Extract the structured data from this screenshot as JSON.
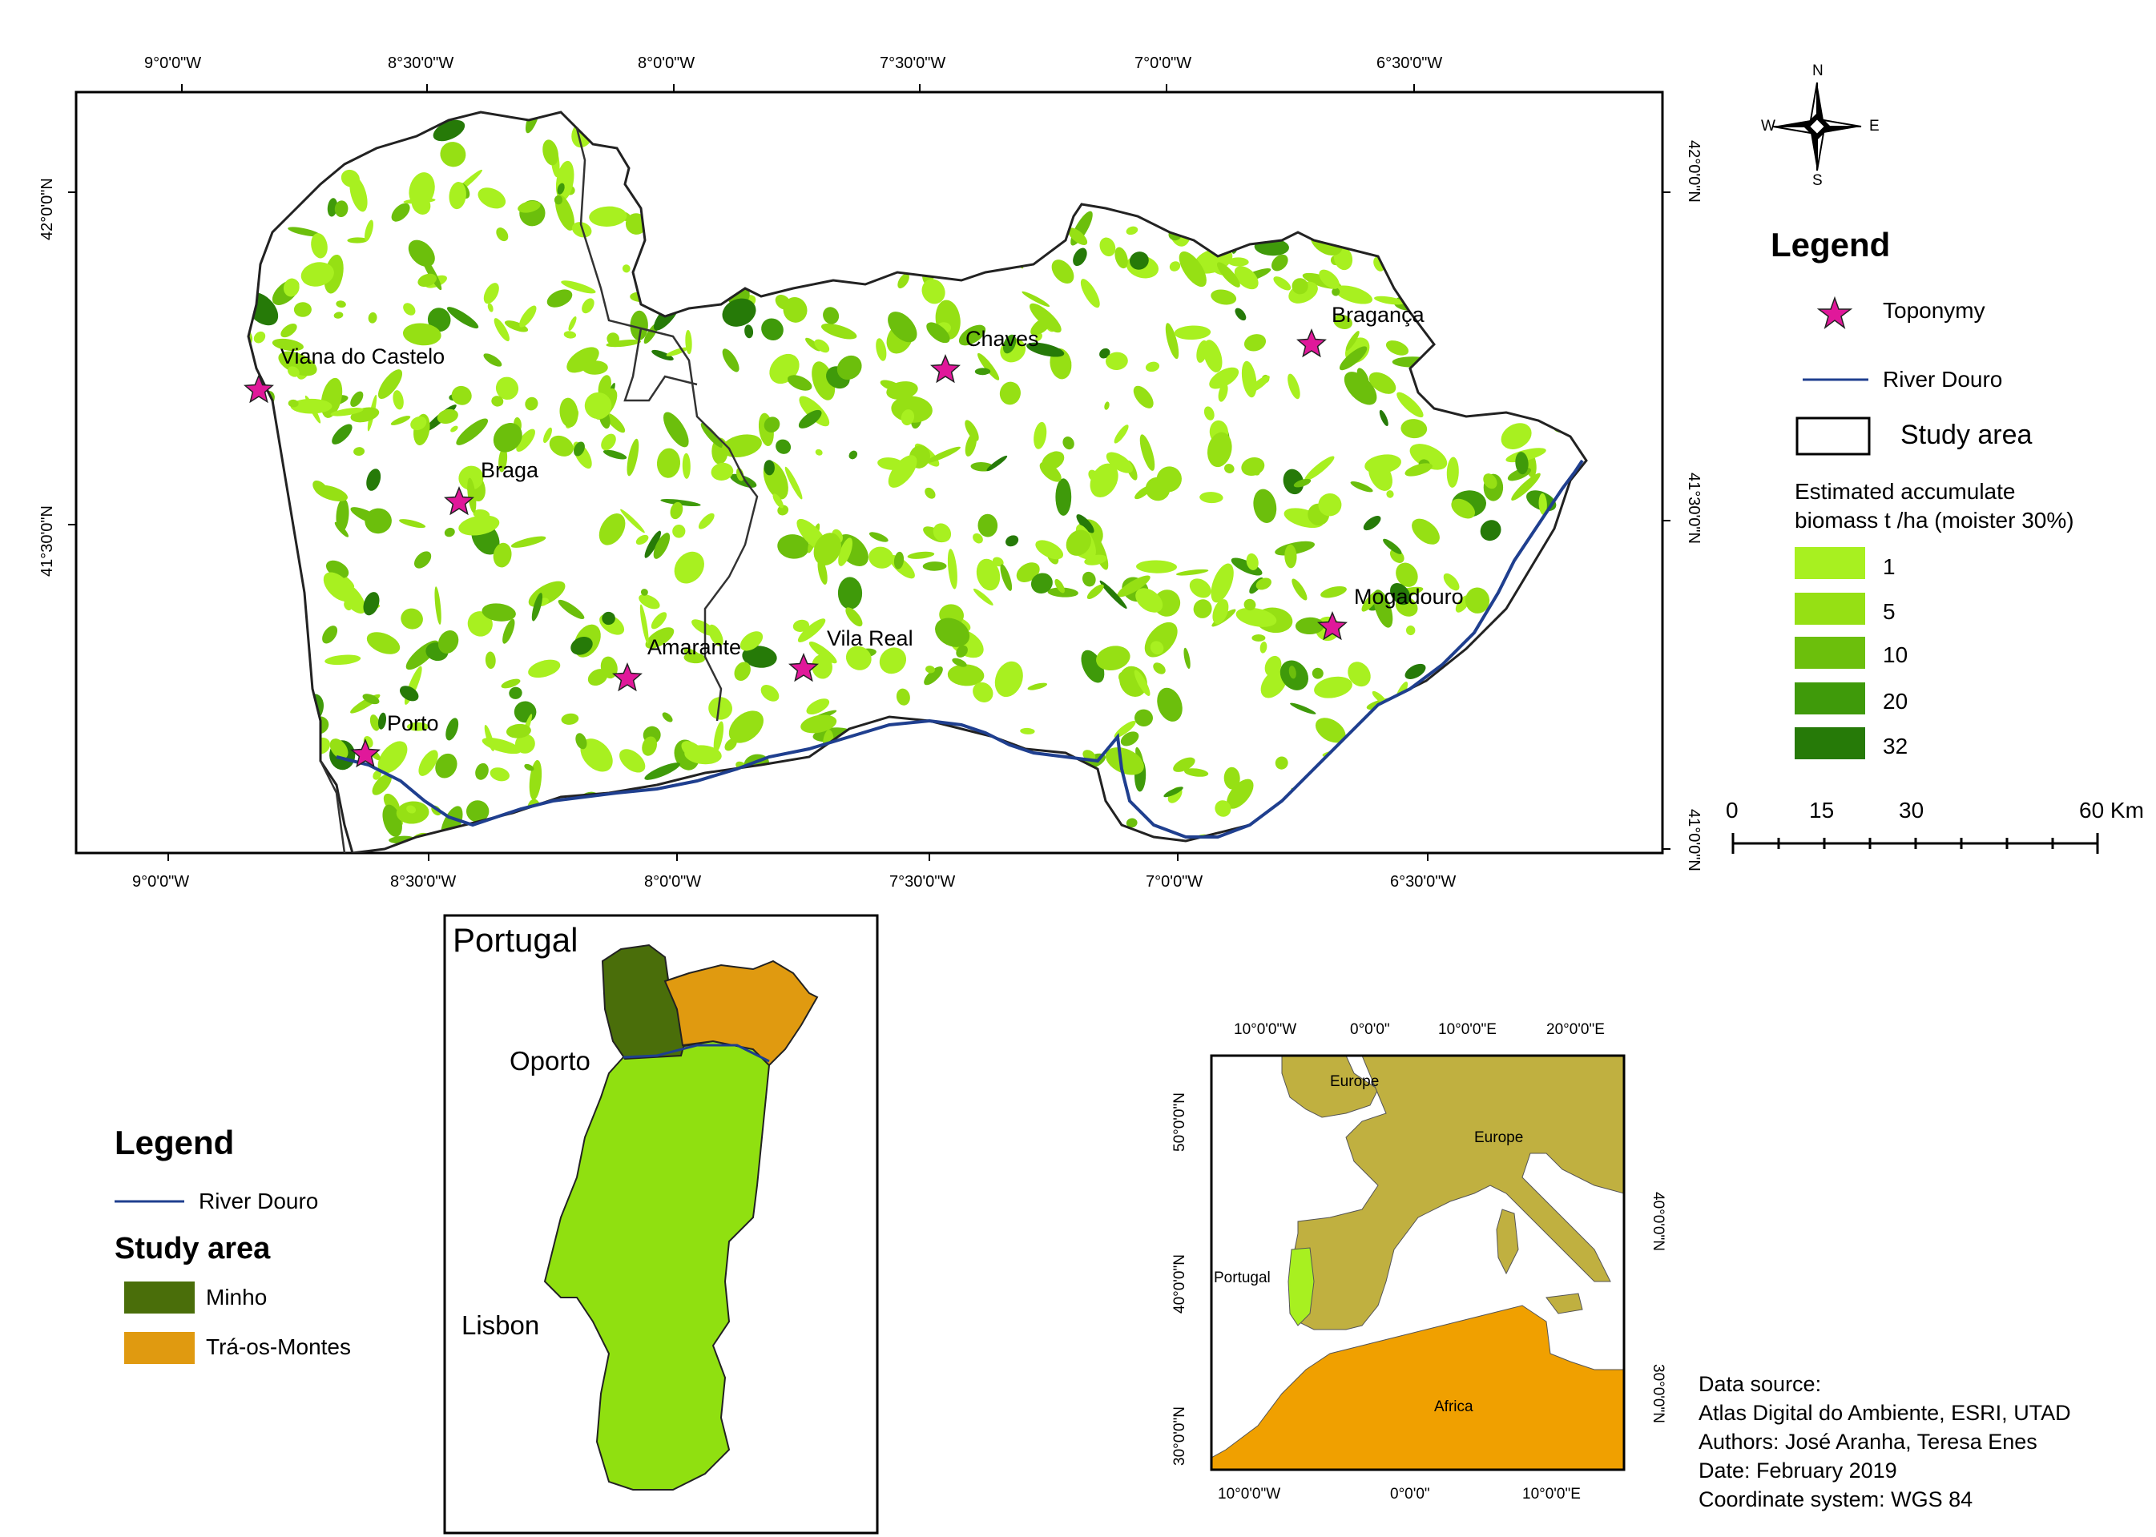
{
  "main_map": {
    "top_labels": [
      "9°0'0\"W",
      "8°30'0\"W",
      "8°0'0\"W",
      "7°30'0\"W",
      "7°0'0\"W",
      "6°30'0\"W"
    ],
    "bottom_labels": [
      "9°0'0\"W",
      "8°30'0\"W",
      "8°0'0\"W",
      "7°30'0\"W",
      "7°0'0\"W",
      "6°30'0\"W"
    ],
    "left_labels": [
      "42°0'0\"N",
      "41°30'0\"N"
    ],
    "right_labels": [
      "42°0'0\"N",
      "41°30'0\"N",
      "41°0'0\"N"
    ],
    "towns": [
      "Viana do Castelo",
      "Braga",
      "Chaves",
      "Bragança",
      "Amarante",
      "Vila Real",
      "Porto",
      "Mogadouro"
    ],
    "colors": {
      "boundary": "#222222",
      "river": "#1f3f8f",
      "star": "#e0189a"
    }
  },
  "north_arrow": {
    "n": "N",
    "s": "S",
    "e": "E",
    "w": "W"
  },
  "legend_main": {
    "title": "Legend",
    "toponymy": "Toponymy",
    "river": "River Douro",
    "study_area": "Study area",
    "biomass_title_1": "Estimated accumulate",
    "biomass_title_2": "biomass t /ha (moister 30%)",
    "classes": [
      {
        "label": "1",
        "color": "#a8f020"
      },
      {
        "label": "5",
        "color": "#96e014"
      },
      {
        "label": "10",
        "color": "#6cbf0c"
      },
      {
        "label": "20",
        "color": "#3f9a0a"
      },
      {
        "label": "32",
        "color": "#267a08"
      }
    ]
  },
  "scale_bar": {
    "labels": [
      "0",
      "15",
      "30",
      "60 Km"
    ]
  },
  "inset_portugal": {
    "title": "Portugal",
    "oporto": "Oporto",
    "lisbon": "Lisbon",
    "colors": {
      "minho": "#4a6e0a",
      "tras": "#e09a10",
      "portugal": "#90e010"
    }
  },
  "legend_inset": {
    "title": "Legend",
    "river": "River Douro",
    "study_area": "Study area",
    "minho": "Minho",
    "tras": "Trá-os-Montes"
  },
  "inset_europe": {
    "top_labels": [
      "10°0'0\"W",
      "0°0'0\"",
      "10°0'0\"E",
      "20°0'0\"E"
    ],
    "bottom_labels": [
      "10°0'0\"W",
      "0°0'0\"",
      "10°0'0\"E"
    ],
    "left_labels": [
      "50°0'0\"N",
      "40°0'0\"N",
      "30°0'0\"N"
    ],
    "right_labels": [
      "40°0'0\"N",
      "30°0'0\"N"
    ],
    "europe_north": "Europe",
    "europe": "Europe",
    "portugal": "Portugal",
    "africa": "Africa",
    "colors": {
      "europe": "#c0b040",
      "africa": "#f0a000",
      "portugal": "#a8f020"
    }
  },
  "info": {
    "line1": "Data source:",
    "line2": "Atlas Digital do Ambiente, ESRI, UTAD",
    "line3": "Authors: José Aranha, Teresa Enes",
    "line4": "Date: February 2019",
    "line5": "Coordinate system: WGS 84"
  }
}
